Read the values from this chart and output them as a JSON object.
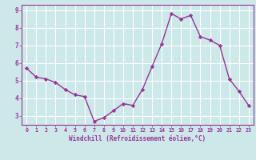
{
  "x": [
    0,
    1,
    2,
    3,
    4,
    5,
    6,
    7,
    8,
    9,
    10,
    11,
    12,
    13,
    14,
    15,
    16,
    17,
    18,
    19,
    20,
    21,
    22,
    23
  ],
  "y": [
    5.7,
    5.2,
    5.1,
    4.9,
    4.5,
    4.2,
    4.1,
    2.7,
    2.9,
    3.3,
    3.7,
    3.6,
    4.5,
    5.8,
    7.1,
    8.8,
    8.5,
    8.7,
    7.5,
    7.3,
    7.0,
    5.1,
    4.4,
    3.6
  ],
  "line_color": "#993399",
  "marker": "D",
  "marker_size": 2.2,
  "bg_color": "#cce8e8",
  "grid_color": "#ffffff",
  "xlabel": "Windchill (Refroidissement éolien,°C)",
  "xlabel_color": "#993399",
  "tick_color": "#993399",
  "ylim": [
    2.5,
    9.3
  ],
  "xlim": [
    -0.5,
    23.5
  ],
  "yticks": [
    3,
    4,
    5,
    6,
    7,
    8,
    9
  ],
  "xticks": [
    0,
    1,
    2,
    3,
    4,
    5,
    6,
    7,
    8,
    9,
    10,
    11,
    12,
    13,
    14,
    15,
    16,
    17,
    18,
    19,
    20,
    21,
    22,
    23
  ]
}
